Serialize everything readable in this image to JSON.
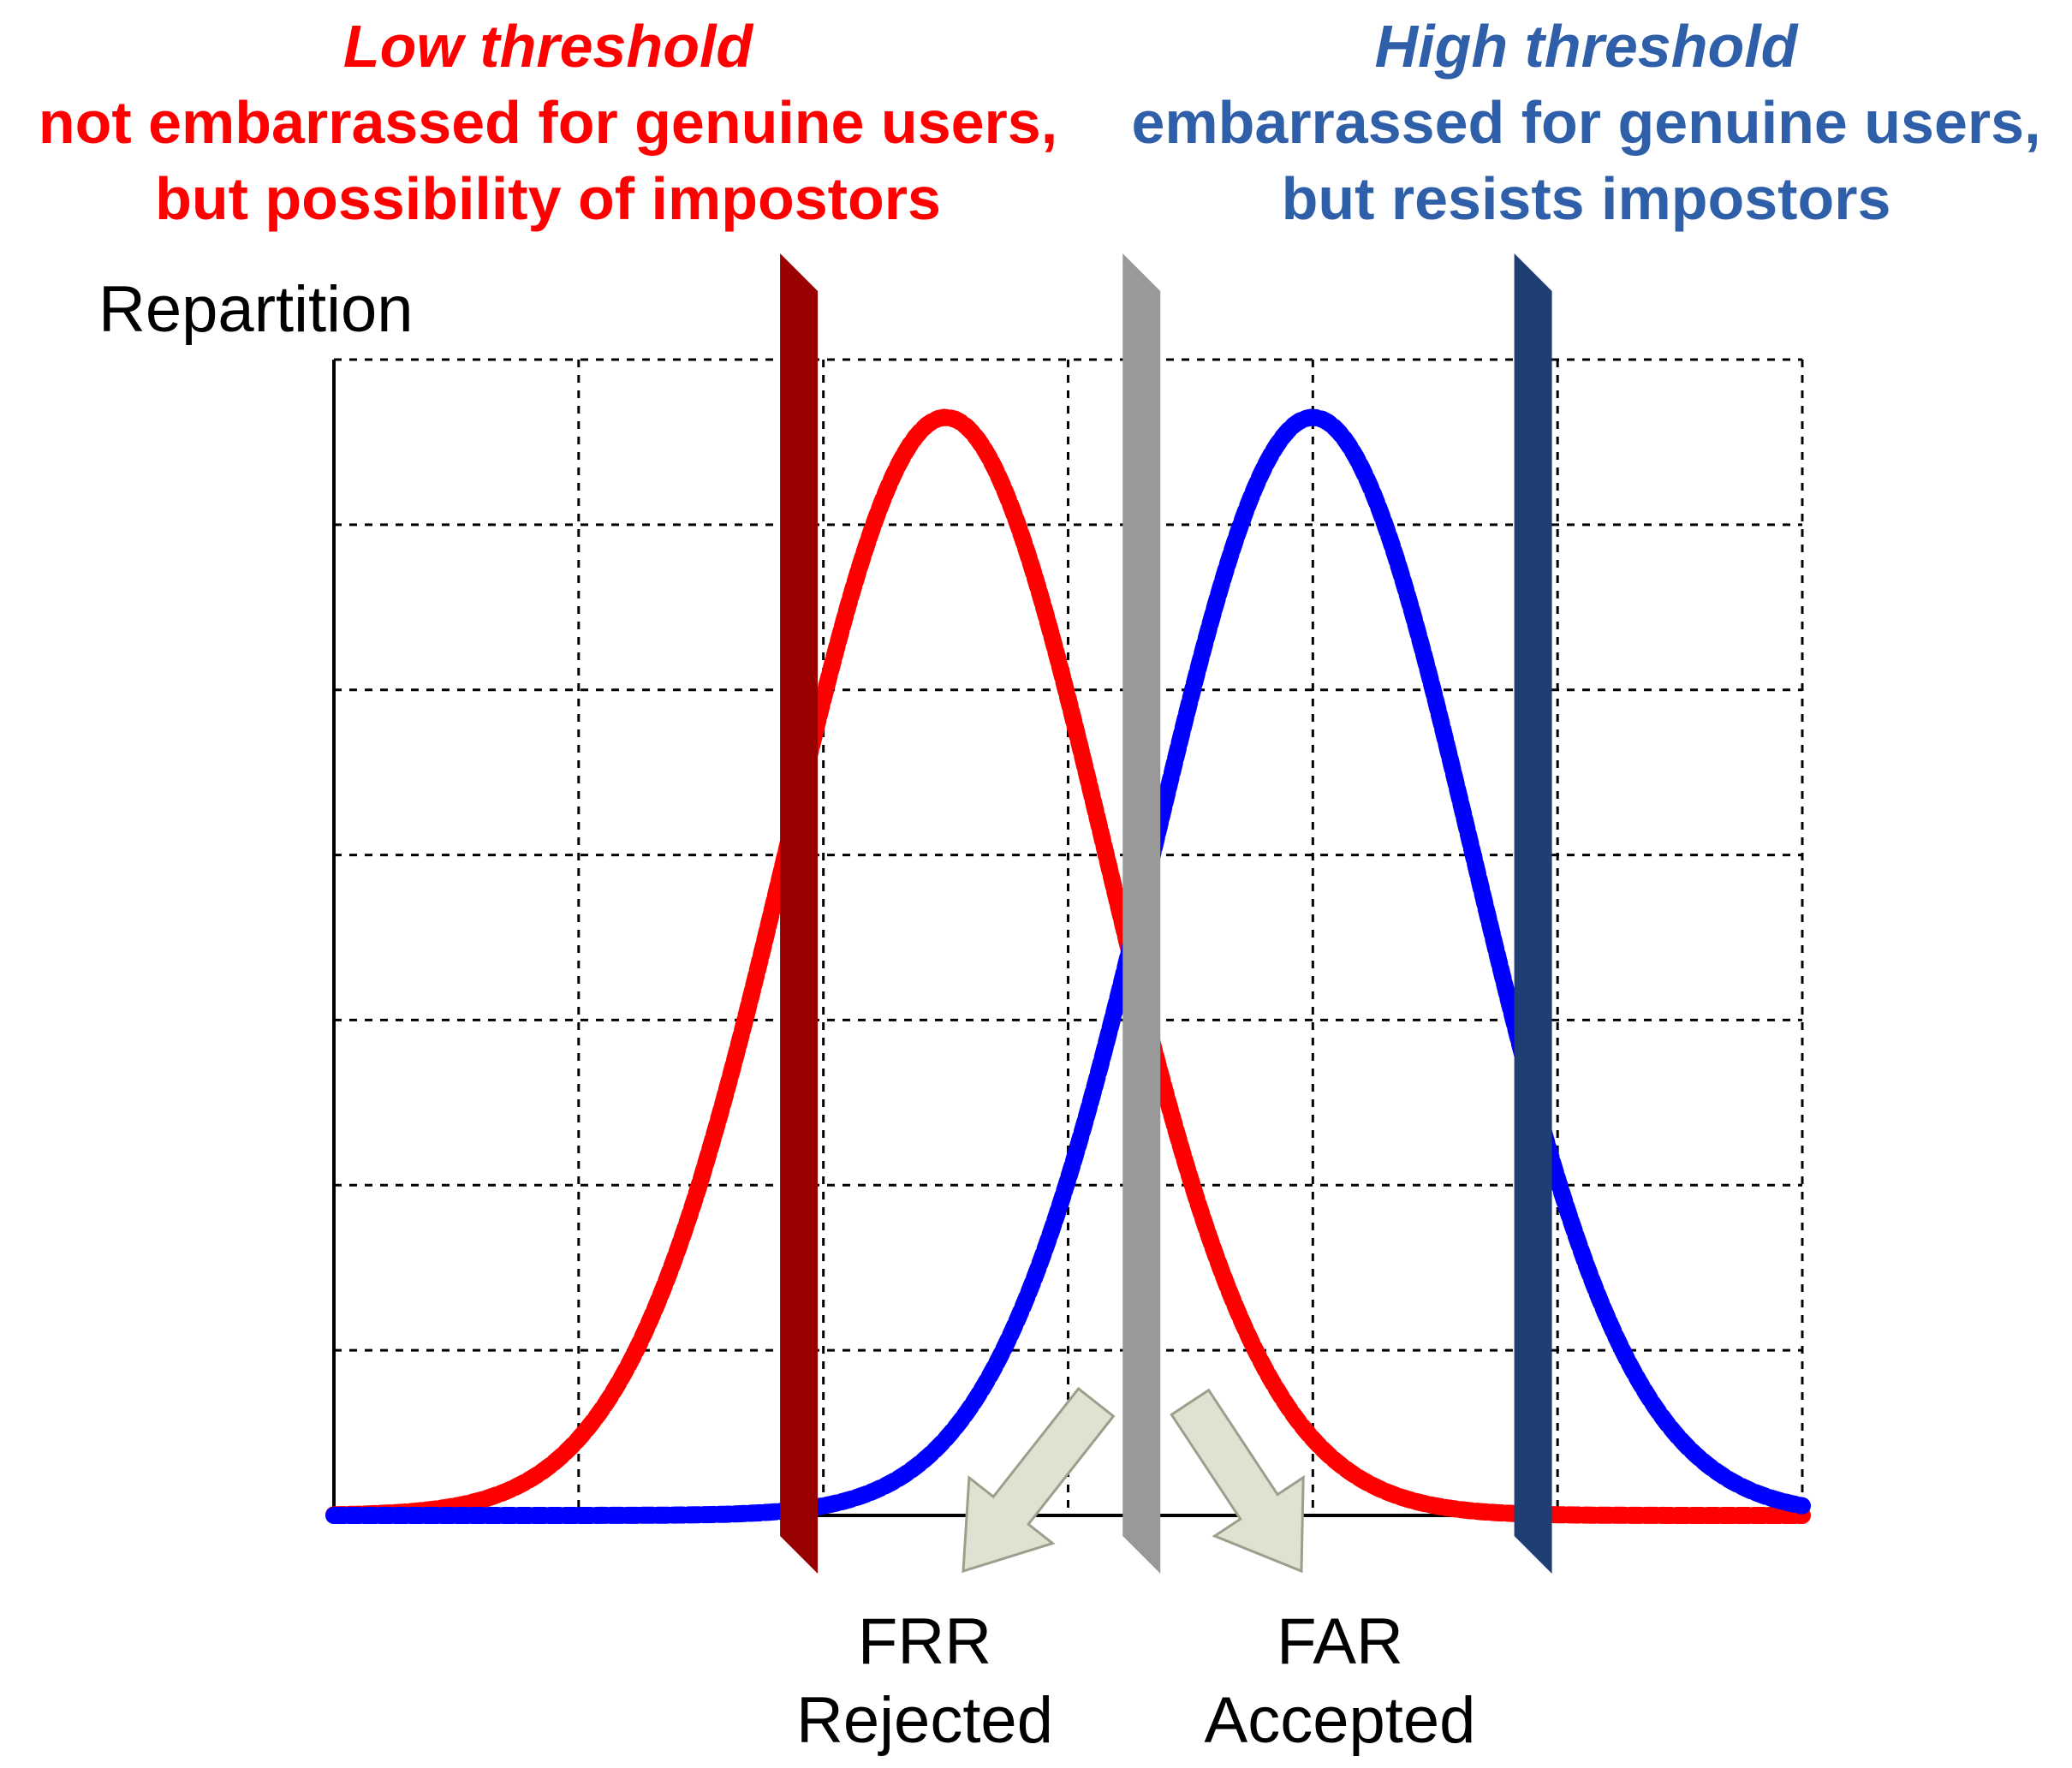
{
  "captions": {
    "low": {
      "heading": "Low threshold",
      "line1": "not embarrassed for genuine users,",
      "line2": "but possibility of impostors",
      "color": "#ff0000"
    },
    "high": {
      "heading": "High threshold",
      "line1": "embarrassed for genuine users,",
      "line2": "but resists impostors",
      "color": "#2e5fa8"
    }
  },
  "chart_data": {
    "type": "line",
    "ylabel": "Repartition",
    "xlabel": "",
    "xlim": [
      0,
      6
    ],
    "ylim": [
      0,
      7
    ],
    "grid": true,
    "grid_style": "dashed",
    "series": [
      {
        "color": "#ff0000",
        "mean": 2.5,
        "sd": 0.65,
        "peak": 6.65
      },
      {
        "color": "#0000ff",
        "mean": 4.0,
        "sd": 0.65,
        "peak": 6.65
      }
    ],
    "thresholds": [
      {
        "x": 1.9,
        "color": "#990000"
      },
      {
        "x": 3.3,
        "color": "#999999"
      },
      {
        "x": 4.9,
        "color": "#1f3f74"
      }
    ],
    "annotations": {
      "frr": {
        "acronym": "FRR",
        "meaning": "Rejected"
      },
      "far": {
        "acronym": "FAR",
        "meaning": "Accepted"
      }
    }
  }
}
